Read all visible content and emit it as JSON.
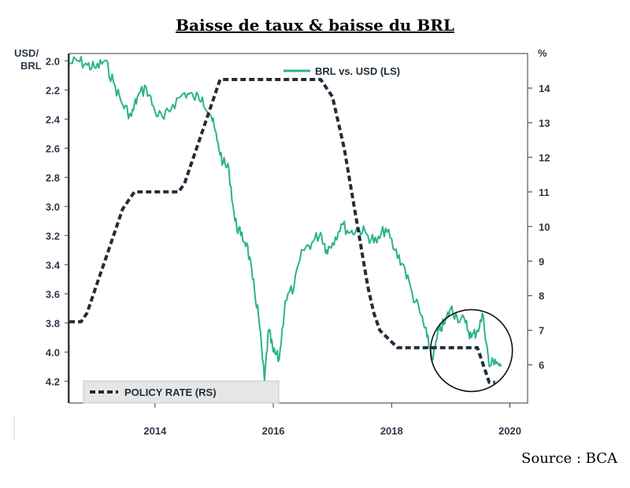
{
  "chart_data": {
    "type": "line",
    "title": "Baisse de taux & baisse du BRL",
    "source": "Source : BCA",
    "left_axis": {
      "label_line1": "USD/",
      "label_line2": "BRL",
      "inverted": true,
      "range": [
        1.95,
        4.35
      ],
      "ticks": [
        "2.0",
        "2.2",
        "2.4",
        "2.6",
        "2.8",
        "3.0",
        "3.2",
        "3.4",
        "3.6",
        "3.8",
        "4.0",
        "4.2"
      ]
    },
    "right_axis": {
      "label": "%",
      "range": [
        4.9,
        15.0
      ],
      "ticks": [
        "6",
        "7",
        "8",
        "9",
        "10",
        "11",
        "12",
        "13",
        "14"
      ]
    },
    "x_axis": {
      "range": [
        2012.55,
        2020.3
      ],
      "ticks": [
        "2014",
        "2016",
        "2018",
        "2020"
      ]
    },
    "grid": false,
    "series": [
      {
        "name": "BRL vs. USD (LS)",
        "axis": "left",
        "color": "#2bb38a",
        "style": "solid",
        "points": [
          [
            2012.55,
            2.02
          ],
          [
            2012.7,
            2.0
          ],
          [
            2012.85,
            2.03
          ],
          [
            2013.0,
            2.05
          ],
          [
            2013.15,
            2.0
          ],
          [
            2013.3,
            2.15
          ],
          [
            2013.45,
            2.3
          ],
          [
            2013.6,
            2.38
          ],
          [
            2013.7,
            2.25
          ],
          [
            2013.85,
            2.18
          ],
          [
            2014.0,
            2.35
          ],
          [
            2014.15,
            2.4
          ],
          [
            2014.3,
            2.3
          ],
          [
            2014.5,
            2.22
          ],
          [
            2014.65,
            2.25
          ],
          [
            2014.8,
            2.25
          ],
          [
            2014.95,
            2.38
          ],
          [
            2015.05,
            2.55
          ],
          [
            2015.15,
            2.7
          ],
          [
            2015.25,
            2.75
          ],
          [
            2015.35,
            3.1
          ],
          [
            2015.45,
            3.2
          ],
          [
            2015.55,
            3.25
          ],
          [
            2015.65,
            3.5
          ],
          [
            2015.75,
            3.75
          ],
          [
            2015.85,
            4.2
          ],
          [
            2015.92,
            3.85
          ],
          [
            2016.0,
            4.0
          ],
          [
            2016.1,
            4.05
          ],
          [
            2016.2,
            3.65
          ],
          [
            2016.35,
            3.55
          ],
          [
            2016.5,
            3.3
          ],
          [
            2016.65,
            3.25
          ],
          [
            2016.8,
            3.18
          ],
          [
            2016.9,
            3.3
          ],
          [
            2017.0,
            3.25
          ],
          [
            2017.15,
            3.12
          ],
          [
            2017.3,
            3.18
          ],
          [
            2017.45,
            3.15
          ],
          [
            2017.6,
            3.2
          ],
          [
            2017.75,
            3.25
          ],
          [
            2017.9,
            3.15
          ],
          [
            2018.05,
            3.3
          ],
          [
            2018.2,
            3.4
          ],
          [
            2018.35,
            3.6
          ],
          [
            2018.5,
            3.75
          ],
          [
            2018.6,
            3.9
          ],
          [
            2018.7,
            4.05
          ],
          [
            2018.8,
            3.85
          ],
          [
            2018.9,
            3.8
          ],
          [
            2019.0,
            3.7
          ],
          [
            2019.1,
            3.75
          ],
          [
            2019.25,
            3.8
          ],
          [
            2019.35,
            3.9
          ],
          [
            2019.45,
            3.85
          ],
          [
            2019.55,
            3.75
          ],
          [
            2019.65,
            4.1
          ],
          [
            2019.75,
            4.05
          ],
          [
            2019.85,
            4.1
          ]
        ]
      },
      {
        "name": "POLICY RATE (RS)",
        "axis": "right",
        "color": "#1f2d3a",
        "style": "dashed",
        "points": [
          [
            2012.55,
            7.25
          ],
          [
            2012.75,
            7.25
          ],
          [
            2012.85,
            7.5
          ],
          [
            2012.95,
            8.0
          ],
          [
            2013.05,
            8.5
          ],
          [
            2013.15,
            9.0
          ],
          [
            2013.25,
            9.5
          ],
          [
            2013.35,
            10.0
          ],
          [
            2013.45,
            10.5
          ],
          [
            2013.55,
            10.75
          ],
          [
            2013.65,
            11.0
          ],
          [
            2014.4,
            11.0
          ],
          [
            2014.5,
            11.25
          ],
          [
            2014.6,
            11.75
          ],
          [
            2014.7,
            12.25
          ],
          [
            2014.8,
            12.75
          ],
          [
            2014.9,
            13.25
          ],
          [
            2015.0,
            13.75
          ],
          [
            2015.1,
            14.25
          ],
          [
            2016.8,
            14.25
          ],
          [
            2016.9,
            14.0
          ],
          [
            2017.0,
            13.75
          ],
          [
            2017.1,
            13.0
          ],
          [
            2017.2,
            12.25
          ],
          [
            2017.3,
            11.25
          ],
          [
            2017.4,
            10.25
          ],
          [
            2017.5,
            9.25
          ],
          [
            2017.6,
            8.25
          ],
          [
            2017.7,
            7.5
          ],
          [
            2017.8,
            7.0
          ],
          [
            2017.95,
            6.75
          ],
          [
            2018.1,
            6.5
          ],
          [
            2019.45,
            6.5
          ],
          [
            2019.55,
            6.0
          ],
          [
            2019.65,
            5.5
          ],
          [
            2019.75,
            5.5
          ]
        ]
      }
    ],
    "legend": {
      "top_label": "BRL vs. USD (LS)",
      "bottom_label": "POLICY RATE (RS)"
    },
    "annotation": {
      "shape": "circle",
      "center": [
        2019.35,
        3.99
      ]
    }
  }
}
